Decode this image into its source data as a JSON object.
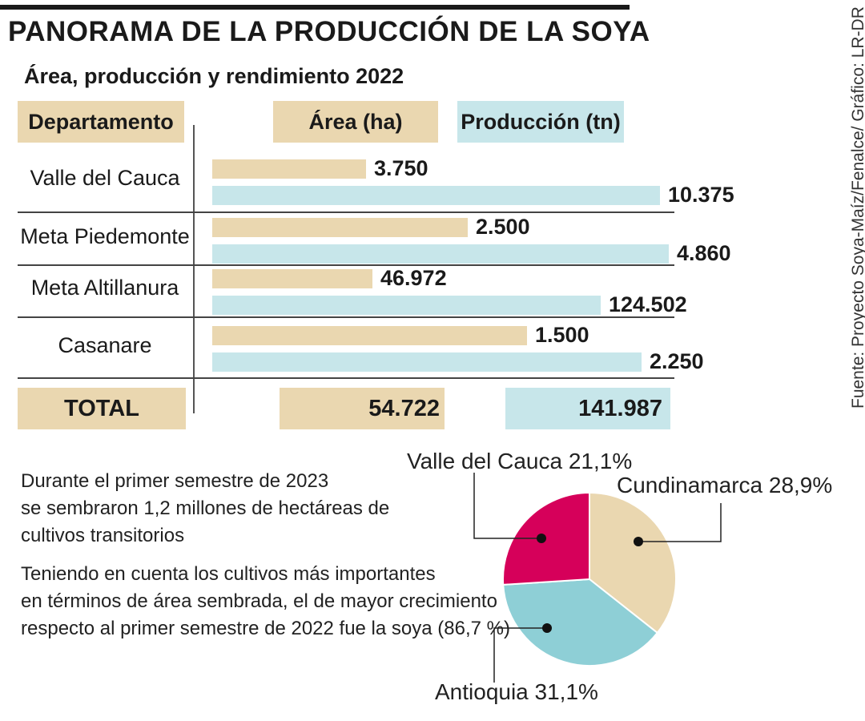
{
  "title": "PANORAMA DE LA PRODUCCIÓN DE LA SOYA",
  "subtitle": "Área, producción y rendimiento 2022",
  "source": "Fuente: Proyecto Soya-Maíz/Fenalce/ Gráfico: LR-DR",
  "headers": {
    "departamento": "Departamento",
    "area": "Área (ha)",
    "produccion": "Producción (tn)"
  },
  "colors": {
    "area": "#ead7b0",
    "produccion": "#c7e6ea",
    "valle": "#d6005a",
    "cundinamarca": "#ead7b0",
    "antioquia": "#8ecfd6"
  },
  "total": {
    "label": "TOTAL",
    "area": "54.722",
    "produccion": "141.987"
  },
  "paragraphs": [
    [
      "Durante el primer semestre de 2023",
      "se sembraron 1,2 millones de hectáreas de",
      "cultivos transitorios"
    ],
    [
      "Teniendo en cuenta los cultivos más importantes",
      "en términos de área sembrada, el de mayor crecimiento",
      "respecto al primer semestre de 2022 fue la soya (86,7 %)"
    ]
  ],
  "chart_data": [
    {
      "type": "bar",
      "categories": [
        "Valle del Cauca",
        "Meta Piedemonte",
        "Meta Altillanura",
        "Casanare"
      ],
      "series": [
        {
          "name": "Área (ha)",
          "values": [
            3750,
            2500,
            46972,
            1500
          ],
          "labels": [
            "3.750",
            "2.500",
            "46.972",
            "1.500"
          ]
        },
        {
          "name": "Producción (tn)",
          "values": [
            10375,
            4860,
            124502,
            2250
          ],
          "labels": [
            "10.375",
            "4.860",
            "124.502",
            "2.250"
          ]
        }
      ],
      "bar_fill": {
        "Área (ha)": [
          0.336,
          0.56,
          0.35,
          0.69
        ],
        "Producción (tn)": [
          0.98,
          1.0,
          0.85,
          0.94
        ]
      }
    },
    {
      "type": "pie",
      "slices": [
        {
          "name": "Valle del Cauca",
          "value": 21.1,
          "label": "Valle del Cauca 21,1%"
        },
        {
          "name": "Cundinamarca",
          "value": 28.9,
          "label": "Cundinamarca 28,9%"
        },
        {
          "name": "Antioquia",
          "value": 31.1,
          "label": "Antioquia 31,1%"
        }
      ]
    }
  ]
}
